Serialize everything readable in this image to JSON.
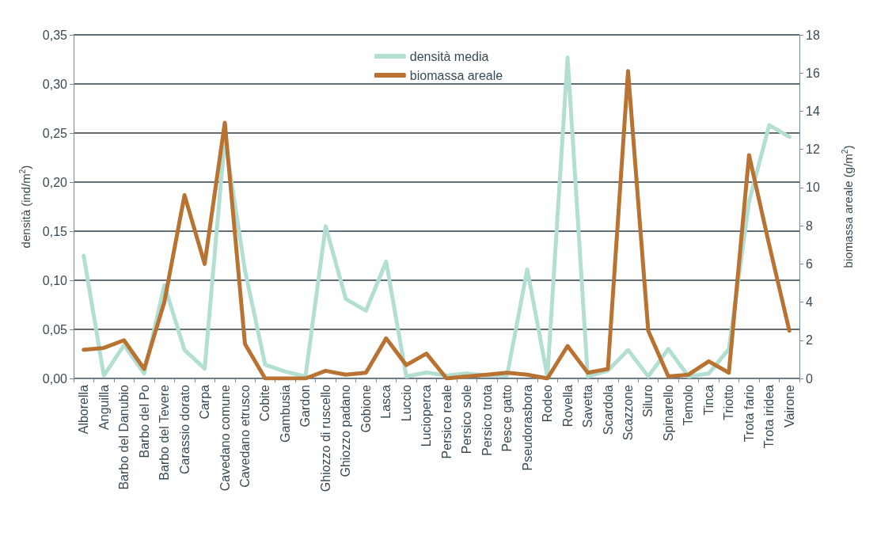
{
  "chart_data": {
    "type": "line",
    "ylabel": "densità (ind/m$^{2}$)",
    "y2label": "biomassa areale (g/m$^{2}$)",
    "categories": [
      "Alborella",
      "Anguilla",
      "Barbo del Danubio",
      "Barbo del Po",
      "Barbo del Tevere",
      "Carassio dorato",
      "Carpa",
      "Cavedano comune",
      "Cavedano etrusco",
      "Cobite",
      "Gambusia",
      "Gardon",
      "Ghiozzo di ruscello",
      "Ghiozzo padano",
      "Gobione",
      "Lasca",
      "Luccio",
      "Lucioperca",
      "Persico reale",
      "Persico sole",
      "Persico trota",
      "Pesce gatto",
      "Pseudorasbora",
      "Rodeo",
      "Rovella",
      "Savetta",
      "Scardola",
      "Scazzone",
      "Siluro",
      "Spinarello",
      "Temolo",
      "Tinca",
      "Triotto",
      "Trota fario",
      "Trota iridea",
      "Vairone"
    ],
    "series": [
      {
        "name": "densità media",
        "color": "#b3dfd3",
        "values": [
          0.125,
          0.003,
          0.034,
          0.005,
          0.095,
          0.029,
          0.01,
          0.245,
          0.11,
          0.014,
          0.007,
          0.002,
          0.155,
          0.081,
          0.069,
          0.119,
          0.002,
          0.006,
          0.003,
          0.005,
          0.003,
          0.003,
          0.111,
          0.002,
          0.327,
          0.002,
          0.008,
          0.029,
          0.002,
          0.03,
          0.002,
          0.005,
          0.03,
          0.18,
          0.258,
          0.246
        ]
      },
      {
        "name": "biomassa areale",
        "color": "#b87333",
        "axis": "y2",
        "values": [
          1.5,
          1.6,
          2.0,
          0.5,
          4.0,
          9.6,
          6.0,
          13.4,
          1.8,
          0,
          0,
          0,
          0.4,
          0.2,
          0.3,
          2.1,
          0.7,
          1.3,
          0,
          0.1,
          0.2,
          0.3,
          0.2,
          0,
          1.7,
          0.3,
          0.5,
          16.1,
          2.5,
          0.1,
          0.2,
          0.9,
          0.3,
          11.7,
          7.0,
          2.5
        ]
      }
    ],
    "ylim": [
      0,
      0.35
    ],
    "yticks": [
      {
        "value": 0,
        "label": "0,00"
      },
      {
        "value": 0.05,
        "label": "0,05"
      },
      {
        "value": 0.1,
        "label": "0,10"
      },
      {
        "value": 0.15,
        "label": "0,15"
      },
      {
        "value": 0.2,
        "label": "0,20"
      },
      {
        "value": 0.25,
        "label": "0,25"
      },
      {
        "value": 0.3,
        "label": "0,30"
      },
      {
        "value": 0.35,
        "label": "0,35"
      }
    ],
    "y2lim": [
      0,
      18
    ],
    "y2ticks": [
      0,
      2,
      4,
      6,
      8,
      10,
      12,
      14,
      16,
      18
    ],
    "grid": "y",
    "legend": "top"
  }
}
